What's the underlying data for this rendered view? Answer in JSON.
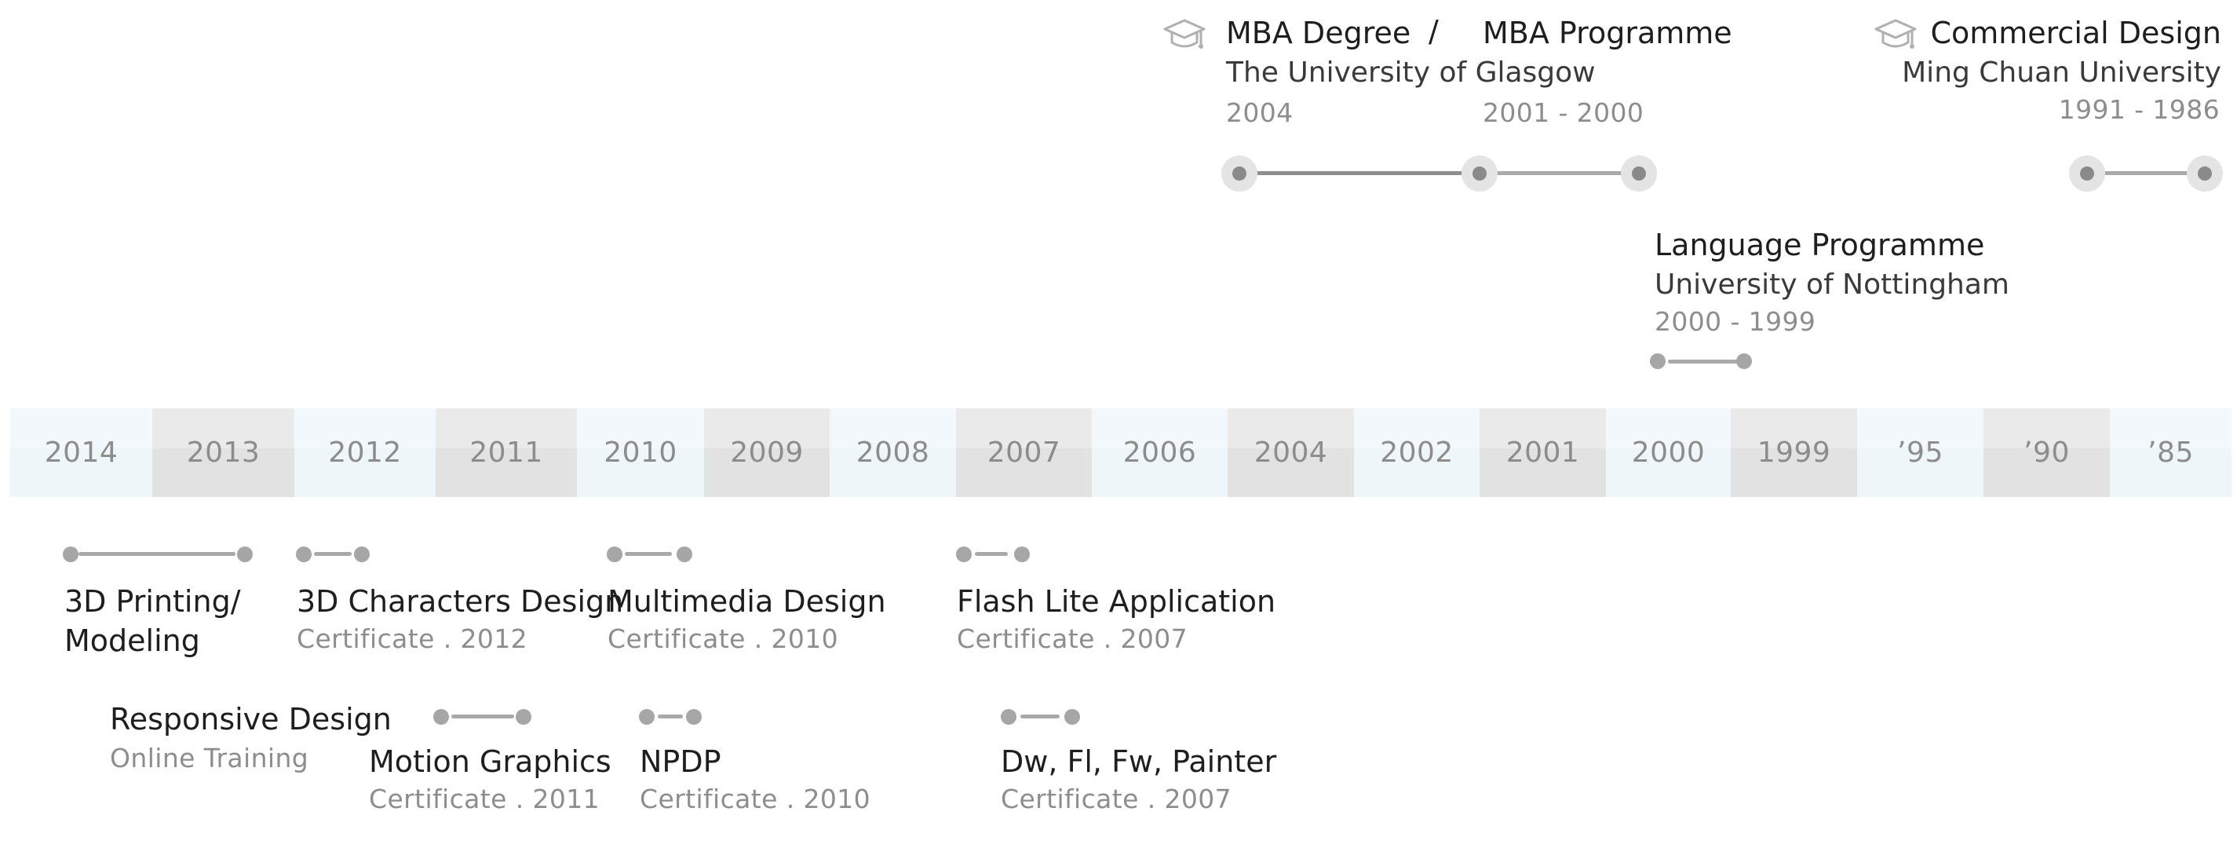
{
  "education": {
    "mba": {
      "degree": "MBA Degree",
      "separator": "/",
      "programme": "MBA Programme",
      "school": "The University of Glasgow",
      "degree_year": "2004",
      "programme_years": "2001 - 2000"
    },
    "commercial": {
      "title": "Commercial Design",
      "school": "Ming Chuan University",
      "years": "1991 - 1986"
    },
    "language": {
      "title": "Language Programme",
      "school": "University of Nottingham",
      "years": "2000 - 1999"
    },
    "icon": "graduation-cap-icon"
  },
  "year_band": [
    "2014",
    "2013",
    "2012",
    "2011",
    "2010",
    "2009",
    "2008",
    "2007",
    "2006",
    "2004",
    "2002",
    "2001",
    "2000",
    "1999",
    "’95",
    "’90",
    "’85"
  ],
  "certificates": {
    "printing": {
      "title_line1": "3D Printing/",
      "title_line2": "Modeling"
    },
    "characters": {
      "title": "3D Characters Design",
      "meta": "Certificate . 2012"
    },
    "multimedia": {
      "title": "Multimedia Design",
      "meta": "Certificate . 2010"
    },
    "flash": {
      "title": "Flash Lite Application",
      "meta": "Certificate . 2007"
    },
    "responsive": {
      "title": "Responsive Design",
      "meta": "Online Training"
    },
    "motion": {
      "title": "Motion Graphics",
      "meta": "Certificate . 2011"
    },
    "npdp": {
      "title": "NPDP",
      "meta": "Certificate . 2010"
    },
    "dw": {
      "title": "Dw, Fl, Fw, Painter",
      "meta": "Certificate . 2007"
    }
  },
  "colors": {
    "band_light": "#eef6f9",
    "band_dark": "#e3e3e3",
    "year_text": "#8c8c8c",
    "dot": "#a6a6a6"
  }
}
